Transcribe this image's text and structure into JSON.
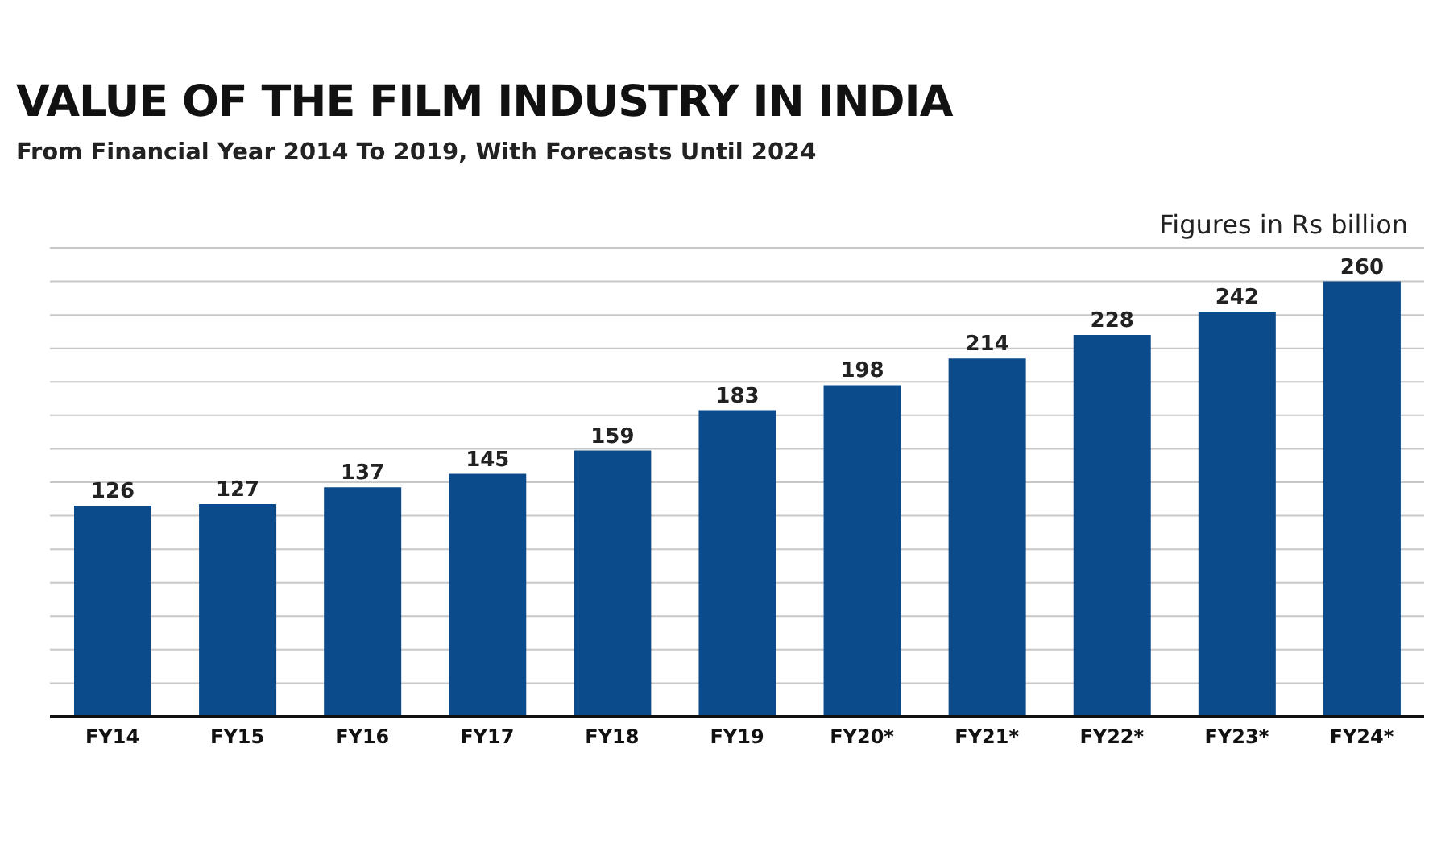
{
  "chart_data": {
    "type": "bar",
    "title": "VALUE OF THE FILM INDUSTRY IN INDIA",
    "subtitle": "From Financial Year 2014 To 2019, With Forecasts Until 2024",
    "annotations": [
      "Figures in Rs billion"
    ],
    "categories": [
      "FY14",
      "FY15",
      "FY16",
      "FY17",
      "FY18",
      "FY19",
      "FY20*",
      "FY21*",
      "FY22*",
      "FY23*",
      "FY24*"
    ],
    "values": [
      126,
      127,
      137,
      145,
      159,
      183,
      198,
      214,
      228,
      242,
      260
    ],
    "color": "#0b4a8b",
    "grid": "y",
    "data_labels": true,
    "tick_labels": "x"
  }
}
